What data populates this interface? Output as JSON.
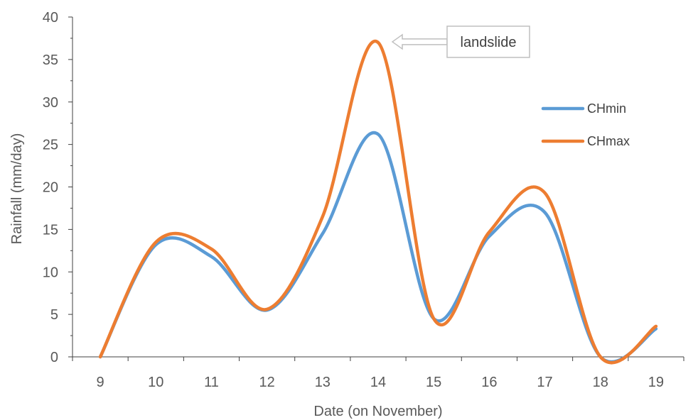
{
  "chart_data": {
    "type": "line",
    "title": "",
    "xlabel": "Date (on November)",
    "ylabel": "Rainfall (mm/day)",
    "x": [
      9,
      10,
      11,
      12,
      13,
      14,
      15,
      16,
      17,
      18,
      19
    ],
    "xlim": [
      8.5,
      19.5
    ],
    "ylim": [
      0,
      40
    ],
    "yticks": [
      0,
      5,
      10,
      15,
      20,
      25,
      30,
      35,
      40
    ],
    "smooth": true,
    "grid": false,
    "legend_position": "right",
    "series": [
      {
        "name": "CHmin",
        "color": "#5B9BD5",
        "values": [
          0,
          13.2,
          11.8,
          5.5,
          14.5,
          26.2,
          4.5,
          14.2,
          17.0,
          0,
          3.3
        ]
      },
      {
        "name": "CHmax",
        "color": "#ED7D31",
        "values": [
          0,
          13.5,
          12.7,
          5.6,
          16.5,
          37.0,
          4.5,
          14.7,
          19.3,
          0,
          3.6
        ]
      }
    ],
    "annotations": [
      {
        "text": "landslide",
        "x": 14,
        "y": 37.0
      }
    ]
  }
}
